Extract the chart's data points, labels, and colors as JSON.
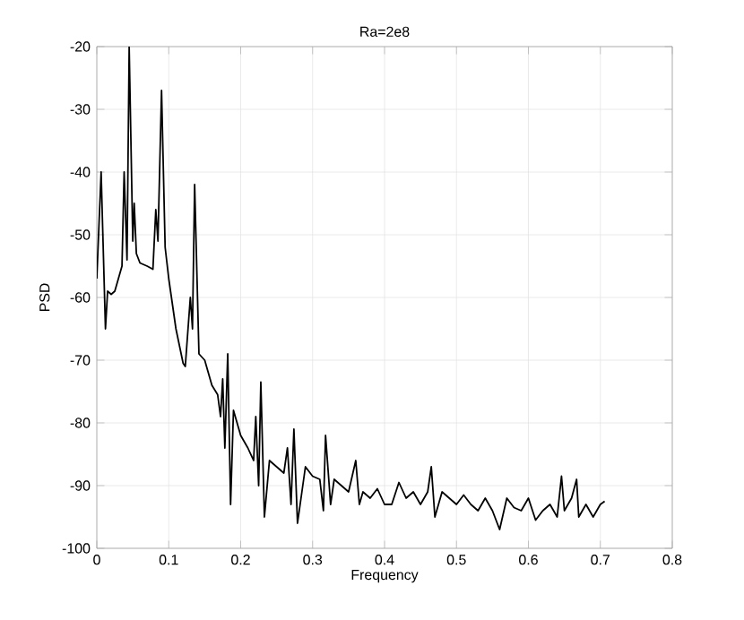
{
  "chart_data": {
    "type": "line",
    "title": "Ra=2e8",
    "xlabel": "Frequency",
    "ylabel": "PSD",
    "xlim": [
      0,
      0.8
    ],
    "ylim": [
      -100,
      -20
    ],
    "xticks": [
      0,
      0.1,
      0.2,
      0.3,
      0.4,
      0.5,
      0.6,
      0.7,
      0.8
    ],
    "yticks": [
      -100,
      -90,
      -80,
      -70,
      -60,
      -50,
      -40,
      -30,
      -20
    ],
    "grid": true,
    "marker": "none",
    "line_style": "solid",
    "series": [
      {
        "color": "#000000",
        "x": [
          0.0,
          0.006,
          0.012,
          0.015,
          0.02,
          0.025,
          0.03,
          0.035,
          0.038,
          0.042,
          0.045,
          0.05,
          0.052,
          0.055,
          0.06,
          0.07,
          0.078,
          0.082,
          0.085,
          0.09,
          0.095,
          0.1,
          0.11,
          0.12,
          0.123,
          0.13,
          0.133,
          0.136,
          0.14,
          0.142,
          0.15,
          0.16,
          0.168,
          0.172,
          0.175,
          0.178,
          0.182,
          0.186,
          0.19,
          0.2,
          0.21,
          0.218,
          0.221,
          0.225,
          0.228,
          0.233,
          0.24,
          0.25,
          0.26,
          0.265,
          0.27,
          0.274,
          0.279,
          0.29,
          0.3,
          0.31,
          0.315,
          0.318,
          0.325,
          0.33,
          0.34,
          0.35,
          0.36,
          0.365,
          0.37,
          0.38,
          0.39,
          0.4,
          0.41,
          0.42,
          0.43,
          0.44,
          0.45,
          0.46,
          0.465,
          0.47,
          0.48,
          0.49,
          0.5,
          0.51,
          0.52,
          0.53,
          0.54,
          0.55,
          0.56,
          0.57,
          0.58,
          0.59,
          0.6,
          0.61,
          0.62,
          0.63,
          0.64,
          0.646,
          0.65,
          0.66,
          0.667,
          0.67,
          0.68,
          0.69,
          0.7,
          0.706
        ],
        "values": [
          -57,
          -40,
          -65,
          -59,
          -59.5,
          -59,
          -57,
          -55,
          -40,
          -54,
          -20,
          -51,
          -45,
          -53,
          -54.5,
          -55,
          -55.5,
          -46,
          -51,
          -27,
          -52,
          -57,
          -65,
          -70.5,
          -71,
          -60,
          -65,
          -42,
          -60,
          -69,
          -70,
          -74,
          -75.5,
          -79,
          -73,
          -84,
          -69,
          -93,
          -78,
          -82,
          -84,
          -86,
          -79,
          -90,
          -73.5,
          -95,
          -86,
          -87,
          -88,
          -84,
          -93,
          -81,
          -96,
          -87,
          -88.5,
          -89,
          -94,
          -82,
          -93,
          -89,
          -90,
          -91,
          -86,
          -93,
          -91,
          -92,
          -90.5,
          -93,
          -93,
          -89.5,
          -92,
          -91,
          -93,
          -91,
          -87,
          -95,
          -91,
          -92,
          -93,
          -91.5,
          -93,
          -94,
          -92,
          -94,
          -97,
          -92,
          -93.5,
          -94,
          -92,
          -95.5,
          -94,
          -93,
          -95,
          -88.5,
          -94,
          -92,
          -89,
          -95,
          -93,
          -95,
          -93,
          -92.5
        ]
      }
    ]
  }
}
